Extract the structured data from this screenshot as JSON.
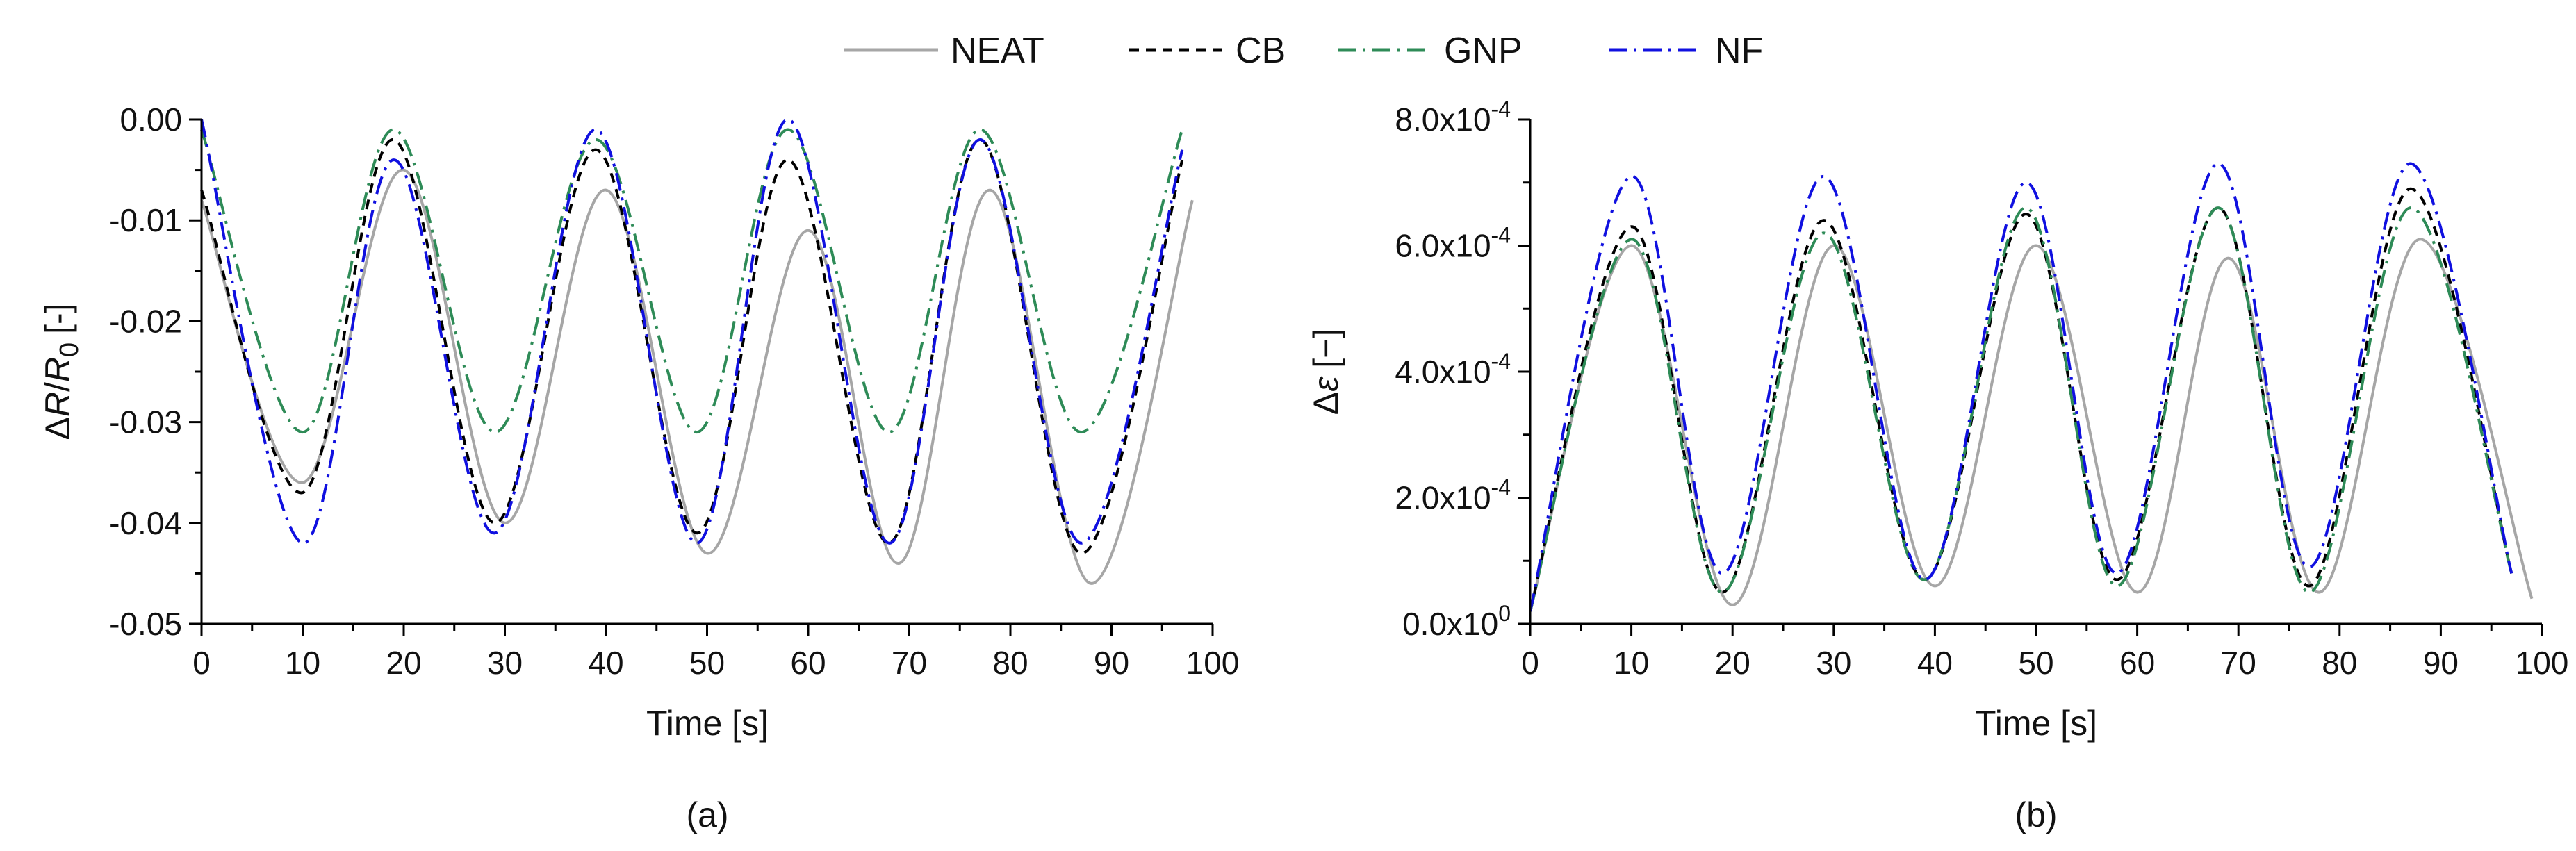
{
  "legend": [
    {
      "name": "NEAT",
      "color": "#a6a6a6",
      "dash": "solid"
    },
    {
      "name": "CB",
      "color": "#000000",
      "dash": "dash"
    },
    {
      "name": "GNP",
      "color": "#2e8b57",
      "dash": "dashdot"
    },
    {
      "name": "NF",
      "color": "#1010e0",
      "dash": "dashdot"
    }
  ],
  "chart_data": [
    {
      "type": "line",
      "panel_label": "(a)",
      "xlabel": "Time [s]",
      "ylabel_parts": {
        "delta": "Δ",
        "r": "R",
        "slash": "/",
        "r0": "R",
        "sub": "0",
        "unit": "[-]"
      },
      "xlim": [
        0,
        100
      ],
      "ylim": [
        -0.05,
        0.0
      ],
      "x_ticks": [
        0,
        10,
        20,
        30,
        40,
        50,
        60,
        70,
        80,
        90,
        100
      ],
      "x_tick_labels": [
        "0",
        "10",
        "20",
        "30",
        "40",
        "50",
        "60",
        "70",
        "80",
        "90",
        "100"
      ],
      "y_ticks": [
        0.0,
        -0.01,
        -0.02,
        -0.03,
        -0.04,
        -0.05
      ],
      "y_tick_labels": [
        "0.00",
        "-0.01",
        "-0.02",
        "-0.03",
        "-0.04",
        "-0.05"
      ],
      "grid": false,
      "series": [
        {
          "name": "NEAT",
          "x": [
            0,
            10,
            20,
            30,
            40,
            50,
            60,
            69,
            78,
            88,
            98
          ],
          "y": [
            -0.008,
            -0.036,
            -0.005,
            -0.04,
            -0.007,
            -0.043,
            -0.011,
            -0.044,
            -0.007,
            -0.046,
            -0.008
          ]
        },
        {
          "name": "CB",
          "x": [
            0,
            10,
            19,
            29,
            39,
            49,
            58,
            68,
            77,
            87,
            97
          ],
          "y": [
            -0.007,
            -0.037,
            -0.002,
            -0.04,
            -0.003,
            -0.041,
            -0.004,
            -0.042,
            -0.002,
            -0.043,
            -0.004
          ]
        },
        {
          "name": "GNP",
          "x": [
            0,
            10,
            19,
            29,
            39,
            49,
            58,
            68,
            77,
            87,
            97
          ],
          "y": [
            -0.001,
            -0.031,
            -0.001,
            -0.031,
            -0.002,
            -0.031,
            -0.001,
            -0.031,
            -0.001,
            -0.031,
            -0.001
          ]
        },
        {
          "name": "NF",
          "x": [
            0,
            10,
            19,
            29,
            39,
            49,
            58,
            68,
            77,
            87,
            97
          ],
          "y": [
            0.0,
            -0.042,
            -0.004,
            -0.041,
            -0.001,
            -0.042,
            0.0,
            -0.042,
            -0.002,
            -0.042,
            -0.003
          ]
        }
      ]
    },
    {
      "type": "line",
      "panel_label": "(b)",
      "xlabel": "Time [s]",
      "ylabel_parts": {
        "delta": "Δ",
        "eps": "ε",
        "unit": "[−]"
      },
      "xlim": [
        0,
        100
      ],
      "ylim": [
        0,
        0.0008
      ],
      "x_ticks": [
        0,
        10,
        20,
        30,
        40,
        50,
        60,
        70,
        80,
        90,
        100
      ],
      "x_tick_labels": [
        "0",
        "10",
        "20",
        "30",
        "40",
        "50",
        "60",
        "70",
        "80",
        "90",
        "100"
      ],
      "y_ticks": [
        0,
        0.0002,
        0.0004,
        0.0006,
        0.0008
      ],
      "y_tick_labels": [
        {
          "mantissa": "0.0x10",
          "exp": "0"
        },
        {
          "mantissa": "2.0x10",
          "exp": "-4"
        },
        {
          "mantissa": "4.0x10",
          "exp": "-4"
        },
        {
          "mantissa": "6.0x10",
          "exp": "-4"
        },
        {
          "mantissa": "8.0x10",
          "exp": "-4"
        }
      ],
      "grid": false,
      "series": [
        {
          "name": "NEAT",
          "x": [
            0,
            10,
            20,
            30,
            40,
            50,
            60,
            69,
            78,
            88,
            99
          ],
          "y": [
            2e-05,
            0.0006,
            3e-05,
            0.0006,
            6e-05,
            0.0006,
            5e-05,
            0.00058,
            5e-05,
            0.00061,
            4e-05
          ]
        },
        {
          "name": "CB",
          "x": [
            0,
            10,
            19,
            29,
            39,
            49,
            58,
            68,
            77,
            87,
            97
          ],
          "y": [
            2e-05,
            0.00063,
            5e-05,
            0.00064,
            7e-05,
            0.00065,
            7e-05,
            0.00066,
            6e-05,
            0.00069,
            8e-05
          ]
        },
        {
          "name": "GNP",
          "x": [
            0,
            10,
            19,
            29,
            39,
            49,
            58,
            68,
            77,
            87,
            97
          ],
          "y": [
            2e-05,
            0.00061,
            5e-05,
            0.00062,
            7e-05,
            0.00066,
            6e-05,
            0.00066,
            5e-05,
            0.00066,
            8e-05
          ]
        },
        {
          "name": "NF",
          "x": [
            0,
            10,
            19,
            29,
            39,
            49,
            58,
            68,
            77,
            87,
            97
          ],
          "y": [
            2e-05,
            0.00071,
            8e-05,
            0.00071,
            7e-05,
            0.0007,
            8e-05,
            0.00073,
            9e-05,
            0.00073,
            8e-05
          ]
        }
      ]
    }
  ]
}
